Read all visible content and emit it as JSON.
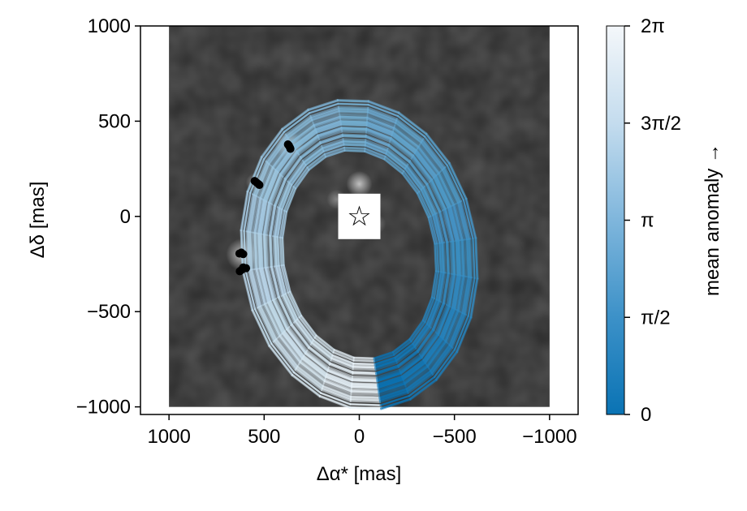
{
  "chart_data": {
    "type": "scatter",
    "title": "",
    "xlabel": "Δα* [mas]",
    "ylabel": "Δδ [mas]",
    "xlim": [
      1150,
      -1150
    ],
    "ylim": [
      -1040,
      1000
    ],
    "x_reversed": true,
    "xticks": [
      1000,
      500,
      0,
      -500,
      -1000
    ],
    "xtick_labels": [
      "1000",
      "500",
      "0",
      "−500",
      "−1000"
    ],
    "yticks": [
      1000,
      500,
      0,
      -500,
      -1000
    ],
    "ytick_labels": [
      "1000",
      "500",
      "0",
      "−500",
      "−1000"
    ],
    "image_extent": {
      "x": [
        1000,
        -1000
      ],
      "y": [
        -1000,
        1000
      ]
    },
    "image_colormap": "grayscale",
    "star_marker": {
      "x": 0,
      "y": 0,
      "symbol": "☆"
    },
    "orbit_family": {
      "center": {
        "x": 0,
        "y": -200
      },
      "semi_axis_x_range": [
        400,
        620
      ],
      "semi_axis_y_range": [
        550,
        820
      ],
      "rotation_deg": 8,
      "count": 60
    },
    "series": [
      {
        "points": [
          {
            "x": 370,
            "y": 372
          },
          {
            "x": 365,
            "y": 362
          },
          {
            "x": 362,
            "y": 355
          },
          {
            "x": 375,
            "y": 378
          },
          {
            "x": 540,
            "y": 178
          },
          {
            "x": 530,
            "y": 170
          },
          {
            "x": 550,
            "y": 186
          },
          {
            "x": 525,
            "y": 165
          },
          {
            "x": 620,
            "y": -190
          },
          {
            "x": 610,
            "y": -198
          },
          {
            "x": 630,
            "y": -195
          },
          {
            "x": 610,
            "y": -268
          },
          {
            "x": 595,
            "y": -272
          },
          {
            "x": 620,
            "y": -282
          },
          {
            "x": 628,
            "y": -288
          }
        ]
      }
    ],
    "colorbar": {
      "label": "mean anomaly →",
      "range": [
        0,
        6.2832
      ],
      "ticks": [
        0,
        1.5708,
        3.1416,
        4.7124,
        6.2832
      ],
      "tick_labels": [
        "0",
        "π/2",
        "π",
        "3π/2",
        "2π"
      ],
      "color_low": "#0a73b4",
      "color_high": "#f4f7fa"
    },
    "grid": false,
    "legend": "none"
  }
}
